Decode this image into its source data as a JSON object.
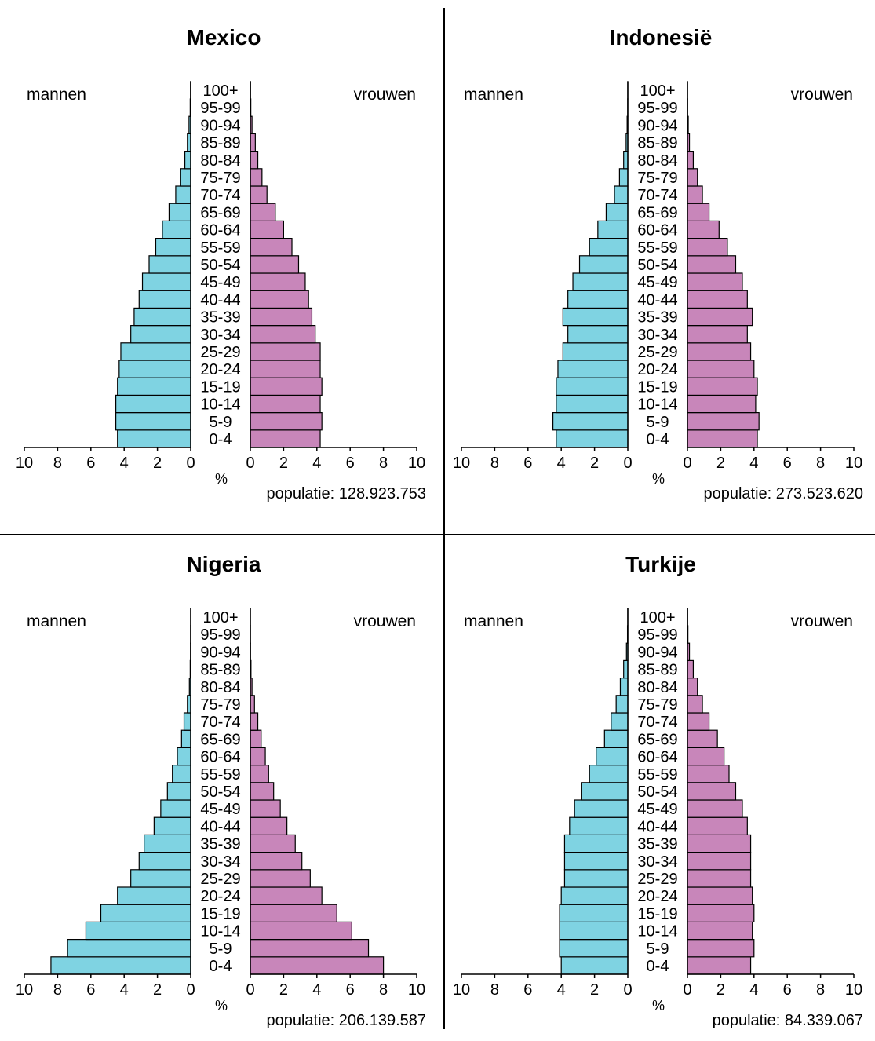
{
  "chart_data": [
    {
      "type": "bar",
      "orientation": "population-pyramid",
      "title": "Mexico",
      "left_label": "mannen",
      "right_label": "vrouwen",
      "unit": "%",
      "population_label": "populatie: 128.923.753",
      "categories": [
        "0-4",
        "5-9",
        "10-14",
        "15-19",
        "20-24",
        "25-29",
        "30-34",
        "35-39",
        "40-44",
        "45-49",
        "50-54",
        "55-59",
        "60-64",
        "65-69",
        "70-74",
        "75-79",
        "80-84",
        "85-89",
        "90-94",
        "95-99",
        "100+"
      ],
      "x_ticks": [
        "10",
        "8",
        "6",
        "4",
        "2",
        "0"
      ],
      "x_ticks_right": [
        "0",
        "2",
        "4",
        "6",
        "8",
        "10"
      ],
      "xlim": [
        0,
        10
      ],
      "series": [
        {
          "name": "mannen",
          "values": [
            4.4,
            4.5,
            4.5,
            4.4,
            4.3,
            4.2,
            3.6,
            3.4,
            3.1,
            2.9,
            2.5,
            2.1,
            1.7,
            1.3,
            0.9,
            0.6,
            0.35,
            0.2,
            0.1,
            0.03,
            0.01
          ],
          "color": "#7fd3e2"
        },
        {
          "name": "vrouwen",
          "values": [
            4.2,
            4.3,
            4.2,
            4.3,
            4.2,
            4.2,
            3.9,
            3.7,
            3.5,
            3.3,
            2.9,
            2.5,
            2.0,
            1.5,
            1.0,
            0.7,
            0.45,
            0.3,
            0.1,
            0.03,
            0.01
          ],
          "color": "#c886ba"
        }
      ]
    },
    {
      "type": "bar",
      "orientation": "population-pyramid",
      "title": "Indonesië",
      "left_label": "mannen",
      "right_label": "vrouwen",
      "unit": "%",
      "population_label": "populatie: 273.523.620",
      "categories": [
        "0-4",
        "5-9",
        "10-14",
        "15-19",
        "20-24",
        "25-29",
        "30-34",
        "35-39",
        "40-44",
        "45-49",
        "50-54",
        "55-59",
        "60-64",
        "65-69",
        "70-74",
        "75-79",
        "80-84",
        "85-89",
        "90-94",
        "95-99",
        "100+"
      ],
      "x_ticks": [
        "10",
        "8",
        "6",
        "4",
        "2",
        "0"
      ],
      "x_ticks_right": [
        "0",
        "2",
        "4",
        "6",
        "8",
        "10"
      ],
      "xlim": [
        0,
        10
      ],
      "series": [
        {
          "name": "mannen",
          "values": [
            4.3,
            4.5,
            4.3,
            4.3,
            4.2,
            3.9,
            3.6,
            3.9,
            3.6,
            3.3,
            2.9,
            2.3,
            1.8,
            1.3,
            0.8,
            0.5,
            0.25,
            0.1,
            0.04,
            0.01,
            0.005
          ],
          "color": "#7fd3e2"
        },
        {
          "name": "vrouwen",
          "values": [
            4.2,
            4.3,
            4.1,
            4.2,
            4.0,
            3.8,
            3.6,
            3.9,
            3.6,
            3.3,
            2.9,
            2.4,
            1.9,
            1.3,
            0.9,
            0.6,
            0.35,
            0.12,
            0.05,
            0.01,
            0.005
          ],
          "color": "#c886ba"
        }
      ]
    },
    {
      "type": "bar",
      "orientation": "population-pyramid",
      "title": "Nigeria",
      "left_label": "mannen",
      "right_label": "vrouwen",
      "unit": "%",
      "population_label": "populatie: 206.139.587",
      "categories": [
        "0-4",
        "5-9",
        "10-14",
        "15-19",
        "20-24",
        "25-29",
        "30-34",
        "35-39",
        "40-44",
        "45-49",
        "50-54",
        "55-59",
        "60-64",
        "65-69",
        "70-74",
        "75-79",
        "80-84",
        "85-89",
        "90-94",
        "95-99",
        "100+"
      ],
      "x_ticks": [
        "10",
        "8",
        "6",
        "4",
        "2",
        "0"
      ],
      "x_ticks_right": [
        "0",
        "2",
        "4",
        "6",
        "8",
        "10"
      ],
      "xlim": [
        0,
        10
      ],
      "series": [
        {
          "name": "mannen",
          "values": [
            8.4,
            7.4,
            6.3,
            5.4,
            4.4,
            3.6,
            3.1,
            2.8,
            2.2,
            1.8,
            1.4,
            1.1,
            0.8,
            0.55,
            0.4,
            0.2,
            0.08,
            0.03,
            0.01,
            0.005,
            0.002
          ],
          "color": "#7fd3e2"
        },
        {
          "name": "vrouwen",
          "values": [
            8.0,
            7.1,
            6.1,
            5.2,
            4.3,
            3.6,
            3.1,
            2.7,
            2.2,
            1.8,
            1.4,
            1.1,
            0.9,
            0.65,
            0.45,
            0.25,
            0.1,
            0.04,
            0.01,
            0.005,
            0.002
          ],
          "color": "#c886ba"
        }
      ]
    },
    {
      "type": "bar",
      "orientation": "population-pyramid",
      "title": "Turkije",
      "left_label": "mannen",
      "right_label": "vrouwen",
      "unit": "%",
      "population_label": "populatie: 84.339.067",
      "categories": [
        "0-4",
        "5-9",
        "10-14",
        "15-19",
        "20-24",
        "25-29",
        "30-34",
        "35-39",
        "40-44",
        "45-49",
        "50-54",
        "55-59",
        "60-64",
        "65-69",
        "70-74",
        "75-79",
        "80-84",
        "85-89",
        "90-94",
        "95-99",
        "100+"
      ],
      "x_ticks": [
        "10",
        "8",
        "6",
        "4",
        "2",
        "0"
      ],
      "x_ticks_right": [
        "0",
        "2",
        "4",
        "6",
        "8",
        "10"
      ],
      "xlim": [
        0,
        10
      ],
      "series": [
        {
          "name": "mannen",
          "values": [
            4.0,
            4.1,
            4.1,
            4.1,
            4.0,
            3.8,
            3.8,
            3.8,
            3.5,
            3.2,
            2.8,
            2.3,
            1.9,
            1.4,
            1.0,
            0.7,
            0.45,
            0.25,
            0.08,
            0.02,
            0.005
          ],
          "color": "#7fd3e2"
        },
        {
          "name": "vrouwen",
          "values": [
            3.8,
            4.0,
            3.9,
            4.0,
            3.9,
            3.8,
            3.8,
            3.8,
            3.6,
            3.3,
            2.9,
            2.5,
            2.2,
            1.8,
            1.3,
            0.9,
            0.6,
            0.35,
            0.12,
            0.03,
            0.01
          ],
          "color": "#c886ba"
        }
      ]
    }
  ]
}
